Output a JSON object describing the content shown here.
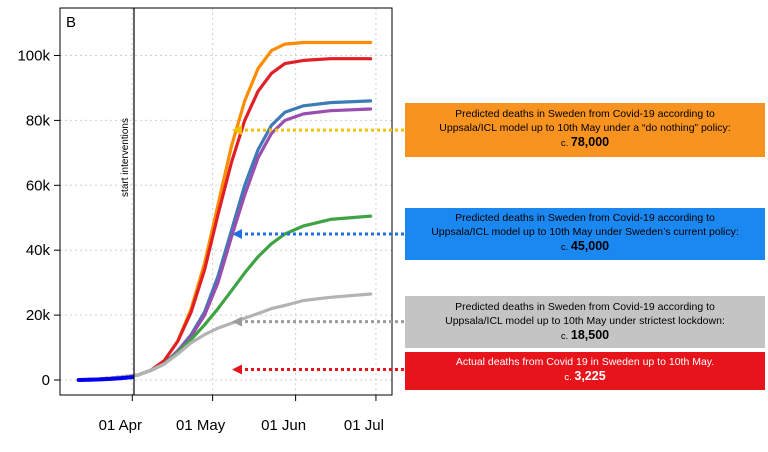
{
  "chart_data": {
    "type": "line",
    "panel_label": "B",
    "x_ticks": [
      "01 Apr",
      "01 May",
      "01 Jun",
      "01 Jul"
    ],
    "y_ticks": [
      "0",
      "20k",
      "40k",
      "60k",
      "80k",
      "100k"
    ],
    "ylim": [
      0,
      110000
    ],
    "grid": true,
    "vline_label": "start interventions",
    "series": [
      {
        "color": "#ff8c00",
        "x": [
          "Mar 12",
          "Mar 20",
          "Mar 27",
          "Apr 3",
          "Apr 8",
          "Apr 13",
          "Apr 18",
          "Apr 23",
          "Apr 28",
          "May 3",
          "May 8",
          "May 13",
          "May 18",
          "May 23",
          "May 28",
          "Jun 4",
          "Jun 14",
          "Jun 29"
        ],
        "y": [
          0,
          300,
          800,
          1500,
          3000,
          6000,
          12000,
          22000,
          36000,
          54000,
          72000,
          86000,
          96000,
          101500,
          103500,
          104000,
          104000,
          104000
        ]
      },
      {
        "color": "#e01f26",
        "x": [
          "Mar 12",
          "Mar 20",
          "Mar 27",
          "Apr 3",
          "Apr 8",
          "Apr 13",
          "Apr 18",
          "Apr 23",
          "Apr 28",
          "May 3",
          "May 8",
          "May 13",
          "May 18",
          "May 23",
          "May 28",
          "Jun 4",
          "Jun 14",
          "Jun 29"
        ],
        "y": [
          0,
          300,
          800,
          1500,
          3000,
          6000,
          12000,
          21000,
          34000,
          51000,
          67000,
          80000,
          89000,
          94500,
          97500,
          98500,
          99000,
          99000
        ]
      },
      {
        "color": "#3c7bb5",
        "x": [
          "Mar 12",
          "Mar 20",
          "Mar 27",
          "Apr 3",
          "Apr 8",
          "Apr 13",
          "Apr 18",
          "Apr 23",
          "Apr 28",
          "May 3",
          "May 8",
          "May 13",
          "May 18",
          "May 23",
          "May 28",
          "Jun 4",
          "Jun 14",
          "Jun 29"
        ],
        "y": [
          0,
          300,
          800,
          1500,
          3000,
          5000,
          9000,
          14000,
          21000,
          32000,
          46000,
          60000,
          71000,
          78500,
          82500,
          84500,
          85500,
          86000
        ]
      },
      {
        "color": "#9a4fb0",
        "x": [
          "Mar 12",
          "Mar 20",
          "Mar 27",
          "Apr 3",
          "Apr 8",
          "Apr 13",
          "Apr 18",
          "Apr 23",
          "Apr 28",
          "May 3",
          "May 8",
          "May 13",
          "May 18",
          "May 23",
          "May 28",
          "Jun 4",
          "Jun 14",
          "Jun 29"
        ],
        "y": [
          0,
          300,
          800,
          1500,
          3000,
          5000,
          9000,
          13500,
          20000,
          30000,
          44000,
          57000,
          68500,
          76000,
          80000,
          82000,
          83000,
          83500
        ]
      },
      {
        "color": "#3fa345",
        "x": [
          "Mar 12",
          "Mar 20",
          "Mar 27",
          "Apr 3",
          "Apr 8",
          "Apr 13",
          "Apr 18",
          "Apr 23",
          "Apr 28",
          "May 3",
          "May 8",
          "May 13",
          "May 18",
          "May 23",
          "May 28",
          "Jun 4",
          "Jun 14",
          "Jun 29"
        ],
        "y": [
          0,
          300,
          800,
          1500,
          3000,
          5000,
          8500,
          12500,
          17000,
          22000,
          27500,
          33000,
          38000,
          42000,
          45000,
          47500,
          49500,
          50500
        ]
      },
      {
        "color": "#b3b3b3",
        "x": [
          "Mar 12",
          "Mar 20",
          "Mar 27",
          "Apr 3",
          "Apr 8",
          "Apr 13",
          "Apr 18",
          "Apr 23",
          "Apr 28",
          "May 3",
          "May 8",
          "May 13",
          "May 18",
          "May 23",
          "May 28",
          "Jun 4",
          "Jun 14",
          "Jun 29"
        ],
        "y": [
          0,
          300,
          800,
          1500,
          3000,
          5000,
          8000,
          11500,
          14000,
          16000,
          17500,
          19000,
          20500,
          22000,
          23000,
          24500,
          25500,
          26500
        ]
      },
      {
        "color": "#0000ee",
        "x": [
          "Mar 12",
          "Mar 16",
          "Mar 20",
          "Mar 24",
          "Mar 28",
          "Apr 1"
        ],
        "y": [
          0,
          100,
          200,
          350,
          600,
          900
        ]
      }
    ],
    "annotations": [
      {
        "text_lines": [
          "Predicted deaths in Sweden from Covid-19 according to",
          "Uppsala/ICL model up to 10th May under a “do nothing” policy:"
        ],
        "approx_prefix": "c.",
        "value_text": "78,000",
        "arrow_y": 77000,
        "box_color": "#f7931e",
        "arrow_color": "#f2c200",
        "text_color": "#000000"
      },
      {
        "text_lines": [
          "Predicted deaths in Sweden from Covid-19 according to",
          "Uppsala/ICL model up to 10th May under Sweden’s current policy:"
        ],
        "approx_prefix": "c.",
        "value_text": "45,000",
        "arrow_y": 45000,
        "box_color": "#1b87f0",
        "arrow_color": "#1f6fe0",
        "text_color": "#000000"
      },
      {
        "text_lines": [
          "Predicted deaths in Sweden from Covid-19 according to",
          "Uppsala/ICL model up to 10th May under strictest lockdown:"
        ],
        "approx_prefix": "c.",
        "value_text": "18,500",
        "arrow_y": 18000,
        "box_color": "#c4c4c4",
        "arrow_color": "#9c9c9c",
        "text_color": "#000000"
      },
      {
        "text_lines": [
          "Actual deaths from Covid 19 in Sweden up to 10th May."
        ],
        "approx_prefix": "c.",
        "value_text": "3,225",
        "arrow_y": 3225,
        "box_color": "#e8141c",
        "arrow_color": "#e8141c",
        "text_color": "#ffffff"
      }
    ]
  }
}
